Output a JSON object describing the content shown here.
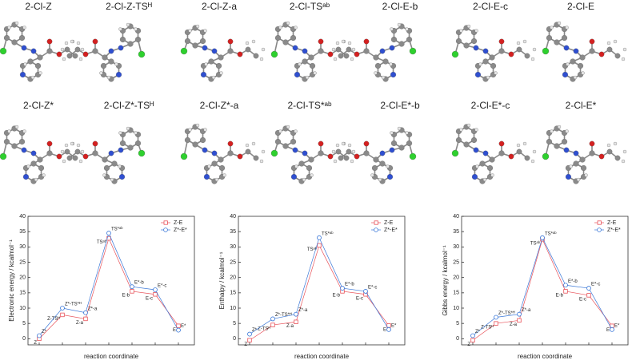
{
  "molecules": {
    "row1": [
      "2-Cl-Z",
      "2-Cl-Z-TSᴴ",
      "2-Cl-Z-a",
      "2-Cl-TSᵃᵇ",
      "2-Cl-E-b",
      "2-Cl-E-c",
      "2-Cl-E"
    ],
    "row2": [
      "2-Cl-Z*",
      "2-Cl-Z*-TSᴴ",
      "2-Cl-Z*-a",
      "2-Cl-TS*ᵃᵇ",
      "2-Cl-E*-b",
      "2-Cl-E*-c",
      "2-Cl-E*"
    ]
  },
  "chart_data": [
    {
      "type": "line",
      "ylabel": "Electronic energy / kcalmol⁻¹",
      "xlabel": "reaction coordinate",
      "categories": [
        null,
        null,
        null,
        null,
        null,
        null,
        null
      ],
      "ylim": [
        -2,
        40
      ],
      "yticks": [
        0,
        5,
        10,
        15,
        20,
        25,
        30,
        35,
        40
      ],
      "legend": "upper right",
      "series": [
        {
          "name": "Z-E",
          "color": "#e8525a",
          "marker": "square",
          "values": [
            0,
            7.8,
            6.5,
            32.8,
            15.5,
            14.5,
            4.2
          ],
          "point_labels": [
            "Z",
            "Z-TSᴴ",
            "Z-a",
            "TSᵃᵇ",
            "E-b",
            "E-c",
            "E"
          ]
        },
        {
          "name": "Z*-E*",
          "color": "#3b78d8",
          "marker": "circle",
          "values": [
            1,
            10,
            8.5,
            34.5,
            17,
            16,
            2.8
          ],
          "point_labels": [
            "Z*",
            "Z*-TS*ᴴ",
            "Z*-a",
            "TS*ᵃᵇ",
            "E*-b",
            "E*-c",
            "E*"
          ]
        }
      ]
    },
    {
      "type": "line",
      "ylabel": "Enthalpy / kcalmol⁻¹",
      "xlabel": "reaction coordinate",
      "categories": [
        null,
        null,
        null,
        null,
        null,
        null,
        null
      ],
      "ylim": [
        -2,
        40
      ],
      "yticks": [
        0,
        5,
        10,
        15,
        20,
        25,
        30,
        35,
        40
      ],
      "legend": "upper right",
      "series": [
        {
          "name": "Z-E",
          "color": "#e8525a",
          "marker": "square",
          "values": [
            -0.5,
            4.5,
            5.5,
            30.5,
            15.5,
            14.5,
            4.3
          ],
          "point_labels": [
            "Z",
            "Z-TSᴴ",
            "Z-a",
            "TSᵃᵇ",
            "E-b",
            "E-c",
            "E"
          ]
        },
        {
          "name": "Z*-E*",
          "color": "#3b78d8",
          "marker": "circle",
          "values": [
            1.5,
            6.5,
            8,
            33,
            16.5,
            15.5,
            3
          ],
          "point_labels": [
            "Z*",
            "Z*-TS*ᴴ",
            "Z*-a",
            "TS*ᵃᵇ",
            "E*-b",
            "E*-c",
            "E*"
          ]
        }
      ]
    },
    {
      "type": "line",
      "ylabel": "Gibbs energy / kcalmol⁻¹",
      "xlabel": "reaction coordinate",
      "categories": [
        null,
        null,
        null,
        null,
        null,
        null,
        null
      ],
      "ylim": [
        -2,
        40
      ],
      "yticks": [
        0,
        5,
        10,
        15,
        20,
        25,
        30,
        35,
        40
      ],
      "legend": "upper right",
      "series": [
        {
          "name": "Z-E",
          "color": "#e8525a",
          "marker": "square",
          "values": [
            -0.5,
            5,
            6,
            32.5,
            15.5,
            14.2,
            4.2
          ],
          "point_labels": [
            "Z",
            "Z-TSᴴ",
            "Z-a",
            "TSᵃᵇ",
            "E-b",
            "E-c",
            "E"
          ]
        },
        {
          "name": "Z*-E*",
          "color": "#3b78d8",
          "marker": "circle",
          "values": [
            1,
            7,
            8,
            33,
            17.5,
            16.5,
            3
          ],
          "point_labels": [
            "Z*",
            "Z*-TS*ᴴ",
            "Z*-a",
            "TS*ᵃᵇ",
            "E*-b",
            "E*-c",
            "E*"
          ]
        }
      ]
    }
  ]
}
